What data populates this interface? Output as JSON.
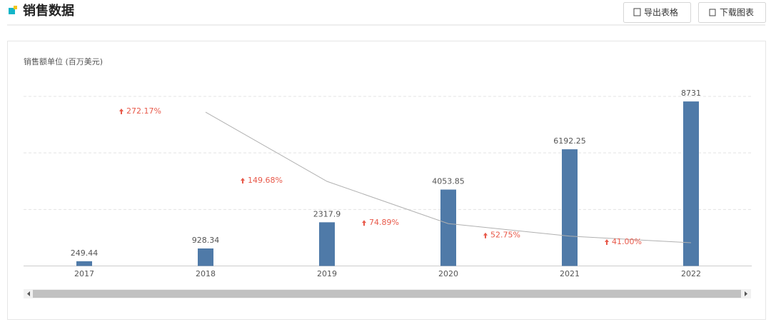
{
  "header": {
    "title": "销售数据",
    "buttons": [
      "导出表格",
      "下载图表"
    ]
  },
  "chart_data": {
    "type": "bar",
    "y_label": "销售额单位 (百万美元)",
    "categories": [
      "2017",
      "2018",
      "2019",
      "2020",
      "2021",
      "2022"
    ],
    "ylim": [
      0,
      9000
    ],
    "yticks": [
      0,
      3000,
      6000,
      9000
    ],
    "ytick_labels": false,
    "grid": true,
    "y2lim": [
      0,
      300
    ],
    "series": [
      {
        "type": "bar",
        "color": "#4f7aa8",
        "values": [
          249.44,
          928.34,
          2317.9,
          4053.85,
          6192.25,
          8731
        ]
      },
      {
        "type": "line",
        "axis": "y2",
        "color": "#b0b0b0",
        "label_color": "#e8594a",
        "values": [
          null,
          272.17,
          149.68,
          74.89,
          52.75,
          41.0
        ],
        "value_labels": [
          null,
          "272.17%",
          "149.68%",
          "74.89%",
          "52.75%",
          "41.00%"
        ]
      }
    ]
  }
}
